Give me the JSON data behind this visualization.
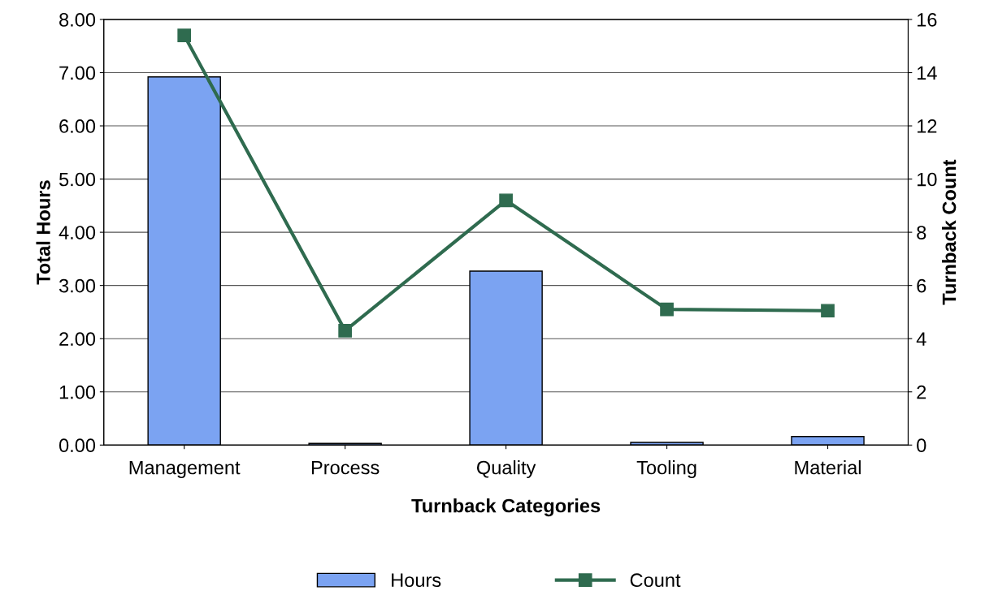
{
  "chart_data": {
    "type": "bar",
    "xlabel": "Turnback Categories",
    "ylabel": "Total Hours",
    "y2label": "Turnback Count",
    "categories": [
      "Management",
      "Process",
      "Quality",
      "Tooling",
      "Material"
    ],
    "series": [
      {
        "name": "Hours",
        "color": "#7ba3f2",
        "values": [
          6.92,
          0.03,
          3.27,
          0.05,
          0.16
        ]
      },
      {
        "name": "Count",
        "type": "line",
        "axis": "y2",
        "color": "#2f6b4f",
        "marker": "square",
        "values": [
          15.4,
          4.3,
          9.2,
          5.1,
          5.05
        ]
      }
    ],
    "ylim": [
      0,
      8
    ],
    "yticks": [
      {
        "value": 0,
        "label": "0.00"
      },
      {
        "value": 1,
        "label": "1.00"
      },
      {
        "value": 2,
        "label": "2.00"
      },
      {
        "value": 3,
        "label": "3.00"
      },
      {
        "value": 4,
        "label": "4.00"
      },
      {
        "value": 5,
        "label": "5.00"
      },
      {
        "value": 6,
        "label": "6.00"
      },
      {
        "value": 7,
        "label": "7.00"
      },
      {
        "value": 8,
        "label": "8.00"
      }
    ],
    "y2lim": [
      0,
      16
    ],
    "y2ticks": [
      0,
      2,
      4,
      6,
      8,
      10,
      12,
      14,
      16
    ],
    "grid": "y",
    "legend": "bottom"
  }
}
